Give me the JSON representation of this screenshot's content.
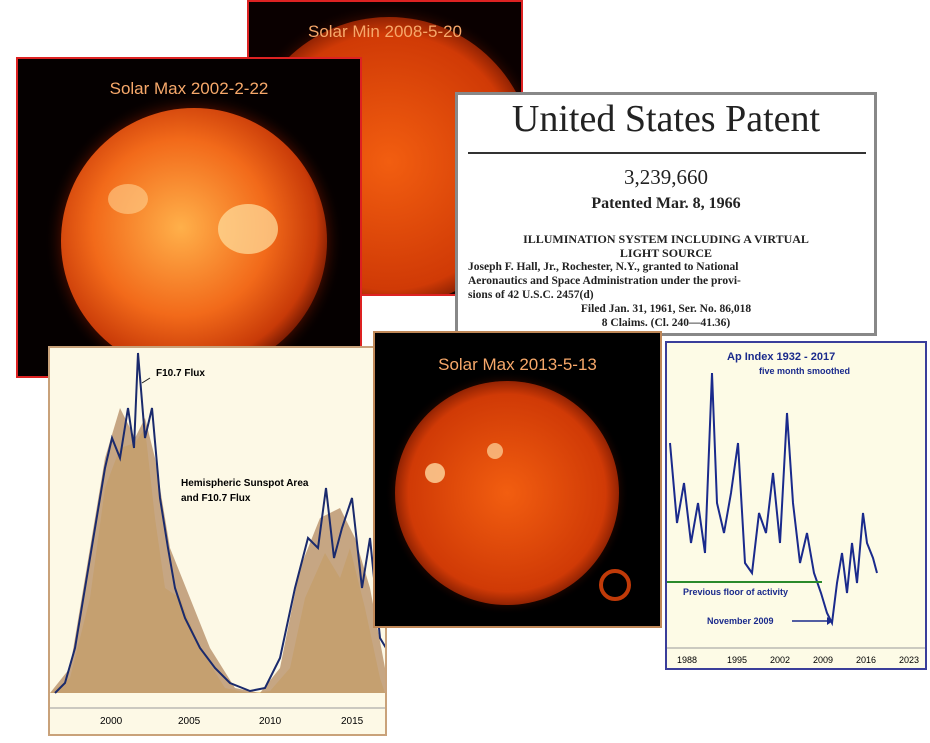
{
  "solar_min": {
    "label": "Solar Min 2008-5-20"
  },
  "solar_max_2002": {
    "label": "Solar Max 2002-2-22"
  },
  "patent": {
    "heading": "United States Patent",
    "number": "3,239,660",
    "date": "Patented Mar. 8, 1966",
    "title_lines": [
      "ILLUMINATION SYSTEM INCLUDING A VIRTUAL",
      "LIGHT SOURCE"
    ],
    "body_lines": [
      "Joseph F. Hall, Jr., Rochester, N.Y., granted to National",
      "Aeronautics and Space Administration under the provi-",
      "sions of 42 U.S.C. 2457(d)",
      "Filed Jan. 31, 1961, Ser. No. 86,018",
      "8 Claims.   (Cl. 240—41.36)"
    ]
  },
  "flux_chart": {
    "peak_label": "F10.7 Flux",
    "legend_lines": [
      "Hemispheric Sunspot Area",
      "and F10.7 Flux"
    ],
    "x_tick_labels": [
      "2000",
      "2005",
      "2010",
      "2015"
    ]
  },
  "solar_max_2013": {
    "label": "Solar Max 2013-5-13"
  },
  "ap_chart": {
    "title": "Ap Index 1932 - 2017",
    "subtitle": "five month smoothed",
    "floor_label": "Previous floor of activity",
    "min_label": "November 2009",
    "x_tick_labels": [
      "1988",
      "1995",
      "2002",
      "2009",
      "2016",
      "2023"
    ]
  }
}
